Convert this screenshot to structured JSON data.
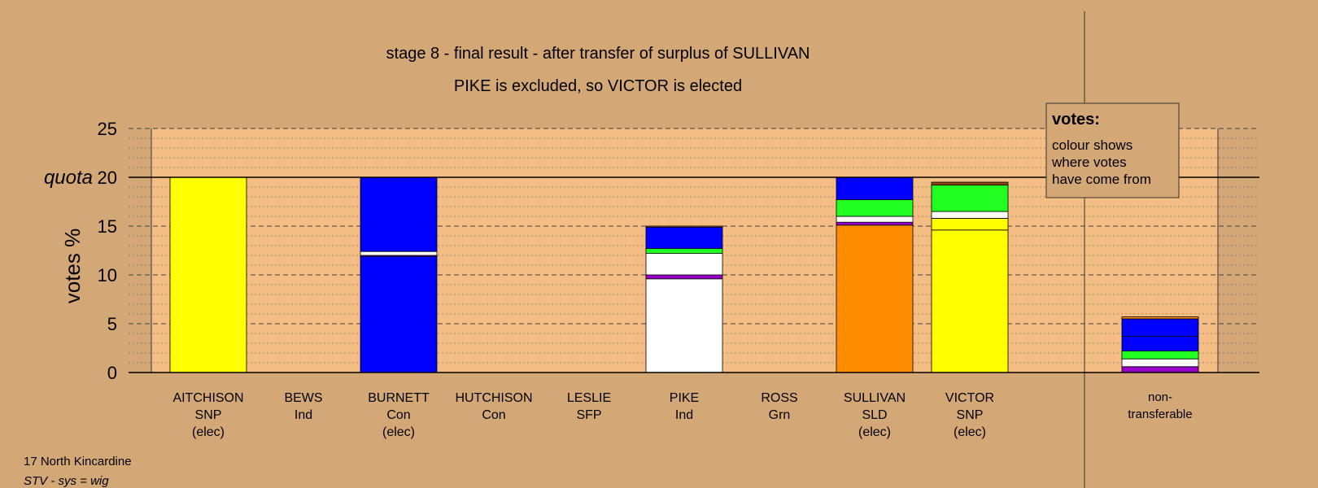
{
  "chart_data": {
    "type": "bar",
    "stacked": true,
    "title": "stage 8 - final result - after transfer of surplus of SULLIVAN",
    "subtitle": "PIKE is excluded, so VICTOR is elected",
    "ylabel": "votes %",
    "ylim": [
      0,
      25
    ],
    "yticks": [
      0,
      5,
      10,
      15,
      20,
      25
    ],
    "quota": {
      "label": "quota",
      "value": 20
    },
    "grid": true,
    "legend": {
      "position": "top-right",
      "title": "votes:",
      "lines": [
        "colour shows",
        "where votes",
        "have come from"
      ]
    },
    "candidates": [
      {
        "name": "AITCHISON",
        "party": "SNP",
        "status": "(elec)",
        "segments": [
          {
            "color": "#FFFF00",
            "value": 20.0
          }
        ]
      },
      {
        "name": "BEWS",
        "party": "Ind",
        "status": "",
        "segments": []
      },
      {
        "name": "BURNETT",
        "party": "Con",
        "status": "(elec)",
        "segments": [
          {
            "color": "#0000FF",
            "value": 11.9
          },
          {
            "color": "#9900CC",
            "value": 0.1
          },
          {
            "color": "#FFFFFF",
            "value": 0.4
          },
          {
            "color": "#0000FF",
            "value": 7.6
          }
        ]
      },
      {
        "name": "HUTCHISON",
        "party": "Con",
        "status": "",
        "segments": []
      },
      {
        "name": "LESLIE",
        "party": "SFP",
        "status": "",
        "segments": []
      },
      {
        "name": "PIKE",
        "party": "Ind",
        "status": "",
        "segments": [
          {
            "color": "#FFFFFF",
            "value": 9.6
          },
          {
            "color": "#9900CC",
            "value": 0.4
          },
          {
            "color": "#FFFFFF",
            "value": 2.2
          },
          {
            "color": "#22FF22",
            "value": 0.5
          },
          {
            "color": "#0000FF",
            "value": 2.2
          },
          {
            "color": "#FF8C00",
            "value": 0.1
          }
        ]
      },
      {
        "name": "ROSS",
        "party": "Grn",
        "status": "",
        "segments": []
      },
      {
        "name": "SULLIVAN",
        "party": "SLD",
        "status": "(elec)",
        "segments": [
          {
            "color": "#FF8C00",
            "value": 15.1
          },
          {
            "color": "#9900CC",
            "value": 0.3
          },
          {
            "color": "#FFFFFF",
            "value": 0.6
          },
          {
            "color": "#22FF22",
            "value": 1.7
          },
          {
            "color": "#0000FF",
            "value": 2.3
          }
        ]
      },
      {
        "name": "VICTOR",
        "party": "SNP",
        "status": "(elec)",
        "segments": [
          {
            "color": "#FFFF00",
            "value": 14.6
          },
          {
            "color": "#FFFF00",
            "value": 1.2
          },
          {
            "color": "#FFFFFF",
            "value": 0.7
          },
          {
            "color": "#22FF22",
            "value": 2.7
          },
          {
            "color": "#8B4513",
            "value": 0.3
          }
        ]
      }
    ],
    "nontransferable": {
      "label_lines": [
        "non-",
        "transferable"
      ],
      "segments": [
        {
          "color": "#9900CC",
          "value": 0.6
        },
        {
          "color": "#FFFFFF",
          "value": 0.8
        },
        {
          "color": "#22FF22",
          "value": 0.8
        },
        {
          "color": "#0000FF",
          "value": 1.5
        },
        {
          "color": "#0000FF",
          "value": 1.8
        },
        {
          "color": "#FF8C00",
          "value": 0.2
        }
      ]
    }
  },
  "footer": {
    "ward": "17 North Kincardine",
    "system": "STV - sys = wig"
  }
}
